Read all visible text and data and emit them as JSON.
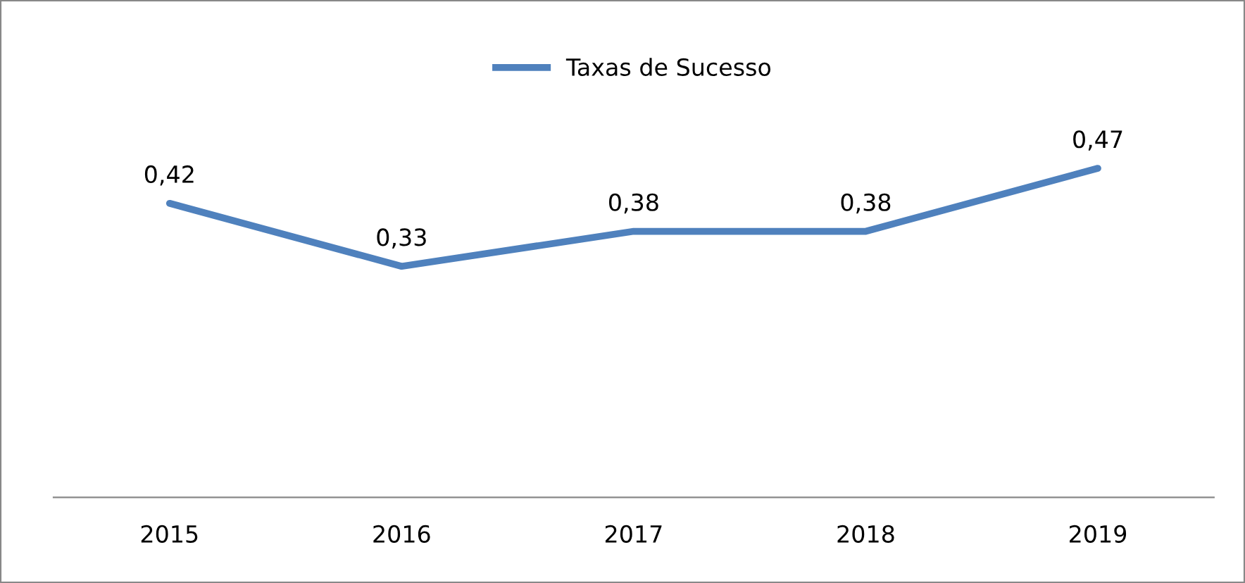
{
  "chart_data": {
    "type": "line",
    "categories": [
      "2015",
      "2016",
      "2017",
      "2018",
      "2019"
    ],
    "series": [
      {
        "name": "Taxas de Sucesso",
        "color": "#4f81bd",
        "values": [
          0.42,
          0.33,
          0.38,
          0.38,
          0.47
        ],
        "value_labels": [
          "0,42",
          "0,33",
          "0,38",
          "0,38",
          "0,47"
        ]
      }
    ],
    "legend": "top",
    "grid": false,
    "marker": "none",
    "line_style": "solid"
  }
}
